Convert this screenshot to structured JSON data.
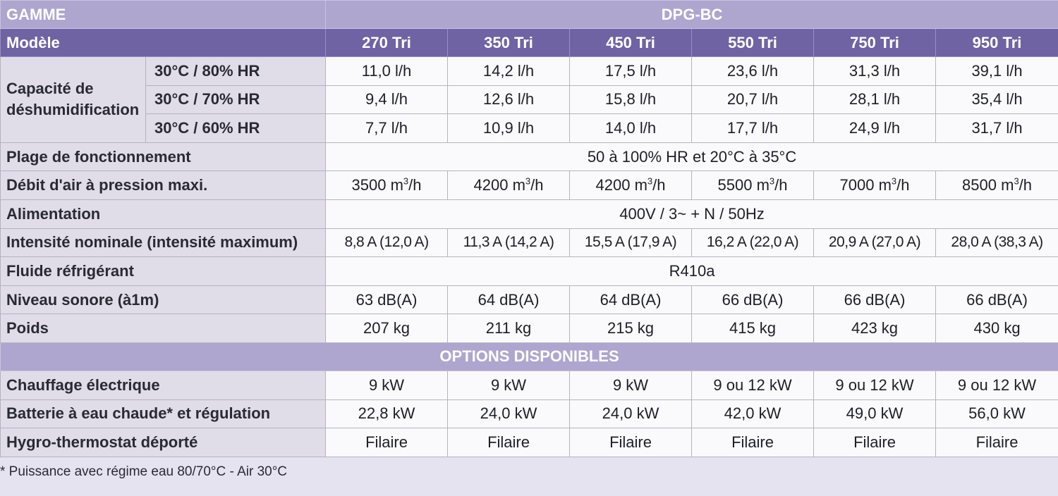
{
  "header": {
    "gamme_label": "GAMME",
    "gamme_value": "DPG-BC",
    "modele_label": "Modèle",
    "models": [
      "270 Tri",
      "350 Tri",
      "450 Tri",
      "550 Tri",
      "750 Tri",
      "950 Tri"
    ]
  },
  "capacite": {
    "label": "Capacité de déshumidification",
    "rows": [
      {
        "condition": "30°C / 80% HR",
        "values": [
          "11,0 l/h",
          "14,2 l/h",
          "17,5 l/h",
          "23,6 l/h",
          "31,3 l/h",
          "39,1 l/h"
        ]
      },
      {
        "condition": "30°C / 70% HR",
        "values": [
          "9,4 l/h",
          "12,6 l/h",
          "15,8 l/h",
          "20,7 l/h",
          "28,1 l/h",
          "35,4 l/h"
        ]
      },
      {
        "condition": "30°C / 60% HR",
        "values": [
          "7,7 l/h",
          "10,9 l/h",
          "14,0 l/h",
          "17,7 l/h",
          "24,9 l/h",
          "31,7 l/h"
        ]
      }
    ]
  },
  "plage": {
    "label": "Plage de fonctionnement",
    "value": "50 à 100% HR et 20°C à 35°C"
  },
  "debit": {
    "label": "Débit d'air à pression maxi.",
    "values": [
      "3500",
      "4200",
      "4200",
      "5500",
      "7000",
      "8500"
    ],
    "unit": "m",
    "unit_exp": "3",
    "unit_suffix": "/h"
  },
  "alimentation": {
    "label": "Alimentation",
    "value": "400V / 3~ + N / 50Hz"
  },
  "intensite": {
    "label": "Intensité nominale (intensité maximum)",
    "values": [
      "8,8 A (12,0 A)",
      "11,3 A (14,2 A)",
      "15,5 A (17,9 A)",
      "16,2 A (22,0 A)",
      "20,9 A (27,0 A)",
      "28,0 A (38,3 A)"
    ]
  },
  "fluide": {
    "label": "Fluide réfrigérant",
    "value": "R410a"
  },
  "niveau": {
    "label": "Niveau sonore (à1m)",
    "values": [
      "63 dB(A)",
      "64 dB(A)",
      "64 dB(A)",
      "66 dB(A)",
      "66 dB(A)",
      "66 dB(A)"
    ]
  },
  "poids": {
    "label": "Poids",
    "values": [
      "207 kg",
      "211 kg",
      "215 kg",
      "415 kg",
      "423 kg",
      "430 kg"
    ]
  },
  "options_header": "OPTIONS DISPONIBLES",
  "chauffage": {
    "label": "Chauffage électrique",
    "values": [
      "9 kW",
      "9 kW",
      "9 kW",
      "9 ou 12 kW",
      "9 ou 12 kW",
      "9 ou 12 kW"
    ]
  },
  "batterie": {
    "label": "Batterie à eau chaude* et régulation",
    "values": [
      "22,8 kW",
      "24,0 kW",
      "24,0 kW",
      "42,0 kW",
      "49,0 kW",
      "56,0 kW"
    ]
  },
  "hygro": {
    "label": "Hygro-thermostat déporté",
    "values": [
      "Filaire",
      "Filaire",
      "Filaire",
      "Filaire",
      "Filaire",
      "Filaire"
    ]
  },
  "footnote": "* Puissance avec régime eau 80/70°C - Air 30°C",
  "colors": {
    "header_light": "#aea6cf",
    "header_dark": "#7063a3",
    "label_bg": "#e0dde9",
    "value_bg": "#fafafc"
  }
}
